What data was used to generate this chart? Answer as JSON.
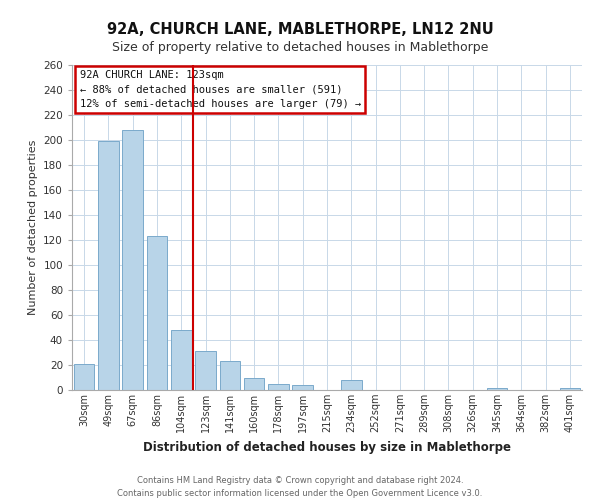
{
  "title": "92A, CHURCH LANE, MABLETHORPE, LN12 2NU",
  "subtitle": "Size of property relative to detached houses in Mablethorpe",
  "xlabel": "Distribution of detached houses by size in Mablethorpe",
  "ylabel": "Number of detached properties",
  "bar_labels": [
    "30sqm",
    "49sqm",
    "67sqm",
    "86sqm",
    "104sqm",
    "123sqm",
    "141sqm",
    "160sqm",
    "178sqm",
    "197sqm",
    "215sqm",
    "234sqm",
    "252sqm",
    "271sqm",
    "289sqm",
    "308sqm",
    "326sqm",
    "345sqm",
    "364sqm",
    "382sqm",
    "401sqm"
  ],
  "bar_values": [
    21,
    199,
    208,
    123,
    48,
    31,
    23,
    10,
    5,
    4,
    0,
    8,
    0,
    0,
    0,
    0,
    0,
    2,
    0,
    0,
    2
  ],
  "bar_color": "#b8d4e8",
  "bar_edge_color": "#7aaacb",
  "marker_index": 5,
  "marker_color": "#cc0000",
  "ylim": [
    0,
    260
  ],
  "yticks": [
    0,
    20,
    40,
    60,
    80,
    100,
    120,
    140,
    160,
    180,
    200,
    220,
    240,
    260
  ],
  "annotation_title": "92A CHURCH LANE: 123sqm",
  "annotation_line1": "← 88% of detached houses are smaller (591)",
  "annotation_line2": "12% of semi-detached houses are larger (79) →",
  "footer_line1": "Contains HM Land Registry data © Crown copyright and database right 2024.",
  "footer_line2": "Contains public sector information licensed under the Open Government Licence v3.0.",
  "background_color": "#ffffff",
  "grid_color": "#c8d8e8",
  "title_fontsize": 10.5,
  "subtitle_fontsize": 9
}
